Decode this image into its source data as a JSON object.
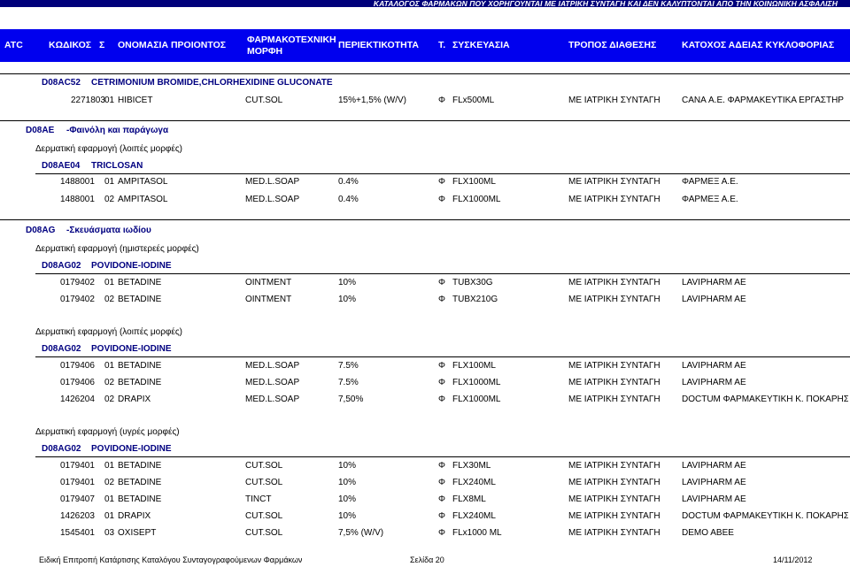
{
  "top_title": "ΚΑΤΑΛΟΓΟΣ ΦΑΡΜΑΚΩΝ ΠΟΥ ΧΟΡΗΓΟΥΝΤΑΙ ΜΕ ΙΑΤΡΙΚΗ ΣΥΝΤΑΓΗ ΚΑΙ ΔΕΝ ΚΑΛΥΠΤΟΝΤΑΙ ΑΠΟ ΤΗΝ ΚΟΙΝΩΝΙΚΗ ΑΣΦΑΛΙΣΗ",
  "header": {
    "atc": "ATC",
    "code": "ΚΩΔΙΚΟΣ",
    "s": "Σ",
    "name": "ΟΝΟΜΑΣΙΑ ΠΡΟΙΟΝΤΟΣ",
    "form_line1": "ΦΑΡΜΑΚΟΤΕΧΝΙΚΗ",
    "form_line2": "ΜΟΡΦΗ",
    "strength": "ΠΕΡΙΕΚΤΙΚΟΤΗΤΑ",
    "t": "Τ.",
    "pack": "ΣΥΣΚΕΥΑΣΙΑ",
    "dispensing": "ΤΡΟΠΟΣ ΔΙΑΘΕΣΗΣ",
    "holder": "ΚΑΤΟΧΟΣ ΑΔΕΙΑΣ ΚΥΚΛΟΦΟΡΙΑΣ"
  },
  "sections": [
    {
      "atc": "D08AC52",
      "substance": "CETRIMONIUM BROMIDE,CHLORHEXIDINE GLUCONATE",
      "rows": [
        {
          "code": "2271803",
          "s": "01",
          "name": "HIBICET",
          "form": "CUT.SOL",
          "strength": "15%+1,5%  (W/V)",
          "t": "Φ",
          "pack": "FLx500ML",
          "disp": "ΜΕ  ΙΑΤΡΙΚΗ ΣΥΝΤΑΓΗ",
          "holder": "CANA Α.Ε. ΦΑΡΜΑΚΕΥΤΙΚΑ ΕΡΓΑΣΤΗΡ"
        }
      ]
    },
    {
      "atc": "D08AE",
      "title": "-Φαινόλη και παράγωγα",
      "groups": [
        {
          "subtitle": "Δερματική εφαρμογή (λοιπές μορφές)",
          "atc": "D08AE04",
          "substance": "TRICLOSAN",
          "rows": [
            {
              "code": "1488001",
              "s": "01",
              "name": "AMPITASOL",
              "form": "MED.L.SOAP",
              "strength": "0.4%",
              "t": "Φ",
              "pack": "FLX100ML",
              "disp": "ΜΕ  ΙΑΤΡΙΚΗ ΣΥΝΤΑΓΗ",
              "holder": "ΦΑΡΜΕΞ Α.Ε."
            },
            {
              "code": "1488001",
              "s": "02",
              "name": "AMPITASOL",
              "form": "MED.L.SOAP",
              "strength": "0.4%",
              "t": "Φ",
              "pack": "FLX1000ML",
              "disp": "ΜΕ  ΙΑΤΡΙΚΗ ΣΥΝΤΑΓΗ",
              "holder": "ΦΑΡΜΕΞ Α.Ε."
            }
          ]
        }
      ]
    },
    {
      "atc": "D08AG",
      "title": "-Σκευάσματα ιωδίου",
      "groups": [
        {
          "subtitle": "Δερματική εφαρμογή (ημιστερεές μορφές)",
          "atc": "D08AG02",
          "substance": "POVIDONE-IODINE",
          "rows": [
            {
              "code": "0179402",
              "s": "01",
              "name": "BETADINE",
              "form": "OINTMENT",
              "strength": "10%",
              "t": "Φ",
              "pack": "TUBX30G",
              "disp": "ΜΕ  ΙΑΤΡΙΚΗ ΣΥΝΤΑΓΗ",
              "holder": "LAVIPHARM AE"
            },
            {
              "code": "0179402",
              "s": "02",
              "name": "BETADINE",
              "form": "OINTMENT",
              "strength": "10%",
              "t": "Φ",
              "pack": "TUBX210G",
              "disp": "ΜΕ  ΙΑΤΡΙΚΗ ΣΥΝΤΑΓΗ",
              "holder": "LAVIPHARM AE"
            }
          ]
        },
        {
          "subtitle": "Δερματική εφαρμογή (λοιπές μορφές)",
          "atc": "D08AG02",
          "substance": "POVIDONE-IODINE",
          "rows": [
            {
              "code": "0179406",
              "s": "01",
              "name": "BETADINE",
              "form": "MED.L.SOAP",
              "strength": "7.5%",
              "t": "Φ",
              "pack": "FLX100ML",
              "disp": "ΜΕ  ΙΑΤΡΙΚΗ ΣΥΝΤΑΓΗ",
              "holder": "LAVIPHARM AE"
            },
            {
              "code": "0179406",
              "s": "02",
              "name": "BETADINE",
              "form": "MED.L.SOAP",
              "strength": "7.5%",
              "t": "Φ",
              "pack": "FLX1000ML",
              "disp": "ΜΕ  ΙΑΤΡΙΚΗ ΣΥΝΤΑΓΗ",
              "holder": "LAVIPHARM AE"
            },
            {
              "code": "1426204",
              "s": "02",
              "name": "DRAPIX",
              "form": "MED.L.SOAP",
              "strength": "7,50%",
              "t": "Φ",
              "pack": "FLX1000ML",
              "disp": "ΜΕ  ΙΑΤΡΙΚΗ ΣΥΝΤΑΓΗ",
              "holder": "DOCTUM ΦΑΡΜΑΚΕΥΤΙΚΗ Κ. ΠΟΚΑΡΗΣ"
            }
          ]
        },
        {
          "subtitle": "Δερματική εφαρμογή (υγρές μορφές)",
          "atc": "D08AG02",
          "substance": "POVIDONE-IODINE",
          "rows": [
            {
              "code": "0179401",
              "s": "01",
              "name": "BETADINE",
              "form": "CUT.SOL",
              "strength": "10%",
              "t": "Φ",
              "pack": "FLX30ML",
              "disp": "ΜΕ  ΙΑΤΡΙΚΗ ΣΥΝΤΑΓΗ",
              "holder": "LAVIPHARM AE"
            },
            {
              "code": "0179401",
              "s": "02",
              "name": "BETADINE",
              "form": "CUT.SOL",
              "strength": "10%",
              "t": "Φ",
              "pack": "FLX240ML",
              "disp": "ΜΕ  ΙΑΤΡΙΚΗ ΣΥΝΤΑΓΗ",
              "holder": "LAVIPHARM AE"
            },
            {
              "code": "0179407",
              "s": "01",
              "name": "BETADINE",
              "form": "TINCT",
              "strength": "10%",
              "t": "Φ",
              "pack": "FLX8ML",
              "disp": "ΜΕ  ΙΑΤΡΙΚΗ ΣΥΝΤΑΓΗ",
              "holder": "LAVIPHARM AE"
            },
            {
              "code": "1426203",
              "s": "01",
              "name": "DRAPIX",
              "form": "CUT.SOL",
              "strength": "10%",
              "t": "Φ",
              "pack": "FLX240ML",
              "disp": "ΜΕ  ΙΑΤΡΙΚΗ ΣΥΝΤΑΓΗ",
              "holder": "DOCTUM ΦΑΡΜΑΚΕΥΤΙΚΗ Κ. ΠΟΚΑΡΗΣ"
            },
            {
              "code": "1545401",
              "s": "03",
              "name": "OXISEPT",
              "form": "CUT.SOL",
              "strength": "7,5%  (W/V)",
              "t": "Φ",
              "pack": "FLx1000 ML",
              "disp": "ΜΕ  ΙΑΤΡΙΚΗ ΣΥΝΤΑΓΗ",
              "holder": "DEMO ABEE"
            }
          ]
        }
      ]
    }
  ],
  "footer": {
    "committee": "Ειδική Επιτροπή Κατάρτισης Καταλόγου Συνταγογραφούμενων Φαρμάκων",
    "page": "Σελίδα 20",
    "date": "14/11/2012"
  },
  "colors": {
    "header_bg": "#0000ee",
    "top_bar": "#00007a",
    "accent_text": "#000080"
  }
}
